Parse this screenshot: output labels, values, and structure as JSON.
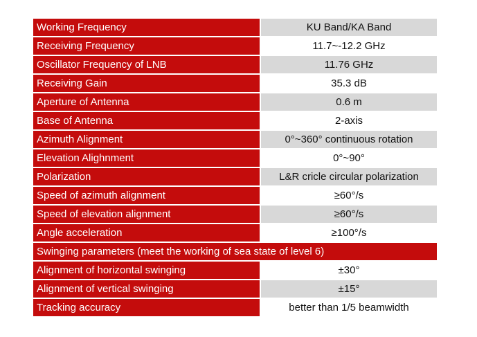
{
  "rows": [
    {
      "label": "Working Frequency",
      "value": "KU Band/KA Band"
    },
    {
      "label": "Receiving Frequency",
      "value": "11.7~-12.2 GHz"
    },
    {
      "label": "Oscillator Frequency of LNB",
      "value": "11.76 GHz"
    },
    {
      "label": "Receiving Gain",
      "value": "35.3 dB"
    },
    {
      "label": "Aperture of Antenna",
      "value": "0.6 m"
    },
    {
      "label": "Base of Antenna",
      "value": "2-axis"
    },
    {
      "label": "Azimuth Alignment",
      "value": "0°~360° continuous rotation"
    },
    {
      "label": "Elevation Alighnment",
      "value": "0°~90°"
    },
    {
      "label": "Polarization",
      "value": "L&R cricle circular polarization"
    },
    {
      "label": "Speed of azimuth alignment",
      "value": "≥60°/s"
    },
    {
      "label": "Speed of elevation alignment",
      "value": "≥60°/s"
    },
    {
      "label": "Angle acceleration",
      "value": "≥100°/s"
    }
  ],
  "section": {
    "label": "Swinging parameters (meet the working of sea state of level 6)"
  },
  "swing_rows": [
    {
      "label": "Alignment of horizontal swinging",
      "value": "±30°"
    },
    {
      "label": "Alignment of vertical swinging",
      "value": "±15°"
    },
    {
      "label": "Tracking accuracy",
      "value": "better than 1/5 beamwidth"
    }
  ]
}
